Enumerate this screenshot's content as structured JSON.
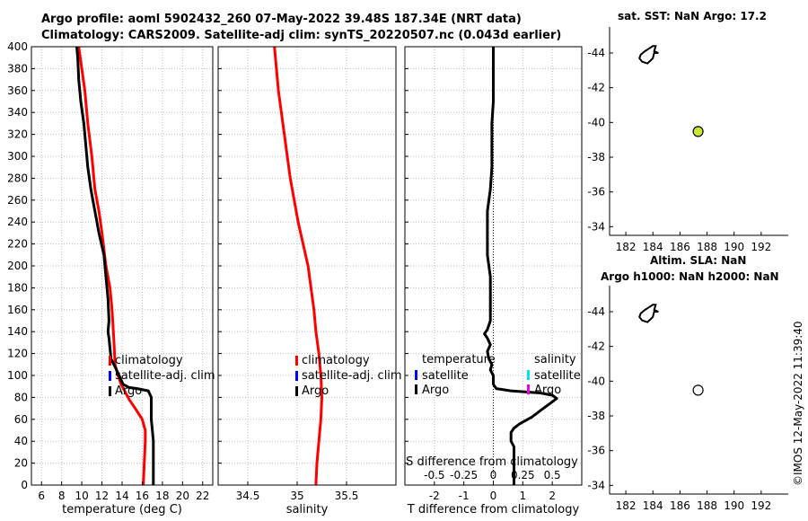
{
  "title": {
    "line1": "Argo profile: aoml 5902432_260 07-May-2022 39.48S 187.34E (NRT data)",
    "line2": "Climatology: CARS2009. Satellite-adj clim: synTS_20220507.nc (0.043d earlier)"
  },
  "timestamp": "©IMOS 12-May-2022 11:39:40",
  "colors": {
    "climatology": "#ff0000",
    "satellite": "#0000ff",
    "argo": "#000000",
    "sat_salinity": "#00e5e5",
    "argo_salinity": "#e800e8",
    "sst_marker": "#c8e632"
  },
  "chart_data": [
    {
      "id": "temperature",
      "type": "line",
      "xlabel": "temperature (deg C)",
      "ylabel": "",
      "xlim": [
        5,
        23
      ],
      "ylim": [
        400,
        0
      ],
      "xticks": [
        6,
        8,
        10,
        12,
        14,
        16,
        18,
        20,
        22
      ],
      "yticks": [
        0,
        20,
        40,
        60,
        80,
        100,
        120,
        140,
        160,
        180,
        200,
        220,
        240,
        260,
        280,
        300,
        320,
        340,
        360,
        380,
        400
      ],
      "grid": true,
      "legend": {
        "position": "lower-right",
        "entries": [
          "climatology",
          "satellite-adj. clim",
          "Argo"
        ]
      },
      "series": [
        {
          "name": "climatology",
          "color": "#ff0000",
          "points": [
            [
              16.1,
              0
            ],
            [
              16.2,
              20
            ],
            [
              16.3,
              40
            ],
            [
              16.3,
              50
            ],
            [
              16.0,
              60
            ],
            [
              15.3,
              70
            ],
            [
              14.7,
              78
            ],
            [
              14.3,
              85
            ],
            [
              13.9,
              92
            ],
            [
              13.6,
              100
            ],
            [
              13.3,
              110
            ],
            [
              13.2,
              130
            ],
            [
              13.0,
              160
            ],
            [
              12.8,
              180
            ],
            [
              12.4,
              200
            ],
            [
              12.0,
              230
            ],
            [
              11.7,
              250
            ],
            [
              11.3,
              270
            ],
            [
              11.0,
              300
            ],
            [
              10.6,
              330
            ],
            [
              10.3,
              360
            ],
            [
              10.0,
              380
            ],
            [
              9.7,
              400
            ]
          ]
        },
        {
          "name": "Argo",
          "color": "#000000",
          "points": [
            [
              17.1,
              0
            ],
            [
              17.1,
              40
            ],
            [
              17.0,
              50
            ],
            [
              16.9,
              60
            ],
            [
              16.9,
              80
            ],
            [
              16.6,
              86
            ],
            [
              15.5,
              88
            ],
            [
              14.7,
              89
            ],
            [
              14.1,
              92
            ],
            [
              13.7,
              100
            ],
            [
              13.3,
              108
            ],
            [
              12.9,
              115
            ],
            [
              12.8,
              125
            ],
            [
              12.7,
              134
            ],
            [
              12.6,
              140
            ],
            [
              12.7,
              150
            ],
            [
              12.6,
              170
            ],
            [
              12.4,
              190
            ],
            [
              12.2,
              210
            ],
            [
              11.7,
              230
            ],
            [
              11.3,
              250
            ],
            [
              10.9,
              270
            ],
            [
              10.6,
              290
            ],
            [
              10.4,
              310
            ],
            [
              10.2,
              330
            ],
            [
              9.9,
              350
            ],
            [
              9.7,
              370
            ],
            [
              9.6,
              390
            ],
            [
              9.5,
              400
            ]
          ]
        }
      ]
    },
    {
      "id": "salinity",
      "type": "line",
      "xlabel": "salinity",
      "ylabel": "",
      "xlim": [
        34.2,
        36.0
      ],
      "ylim": [
        400,
        0
      ],
      "xticks": [
        34.5,
        35,
        35.5
      ],
      "yticks": [
        0,
        20,
        40,
        60,
        80,
        100,
        120,
        140,
        160,
        180,
        200,
        220,
        240,
        260,
        280,
        300,
        320,
        340,
        360,
        380,
        400
      ],
      "grid": true,
      "legend": {
        "position": "lower-right",
        "entries": [
          "climatology",
          "satellite-adj. clim",
          "Argo"
        ]
      },
      "series": [
        {
          "name": "climatology",
          "color": "#ff0000",
          "points": [
            [
              35.19,
              0
            ],
            [
              35.2,
              20
            ],
            [
              35.22,
              40
            ],
            [
              35.24,
              60
            ],
            [
              35.25,
              80
            ],
            [
              35.24,
              100
            ],
            [
              35.22,
              120
            ],
            [
              35.19,
              140
            ],
            [
              35.17,
              160
            ],
            [
              35.14,
              180
            ],
            [
              35.11,
              200
            ],
            [
              35.06,
              220
            ],
            [
              35.01,
              240
            ],
            [
              34.97,
              260
            ],
            [
              34.93,
              280
            ],
            [
              34.9,
              300
            ],
            [
              34.87,
              320
            ],
            [
              34.84,
              340
            ],
            [
              34.81,
              360
            ],
            [
              34.79,
              380
            ],
            [
              34.77,
              400
            ]
          ]
        }
      ]
    },
    {
      "id": "difference",
      "type": "line",
      "xlabel": "T difference from climatology",
      "xlabel_top": "S difference from climatology",
      "xlim": [
        -3,
        3
      ],
      "ylim": [
        400,
        0
      ],
      "xticks": [
        -2,
        -1,
        0,
        1,
        2
      ],
      "top_xtick_labels": [
        "-0.5",
        "-0.25",
        "0",
        "0.25",
        "0.5"
      ],
      "yticks": [
        0,
        20,
        40,
        60,
        80,
        100,
        120,
        140,
        160,
        180,
        200,
        220,
        240,
        260,
        280,
        300,
        320,
        340,
        360,
        380,
        400
      ],
      "grid": true,
      "legend": {
        "position": "lower-center",
        "temperature_header": "temperature",
        "salinity_header": "salinity",
        "temperature_entries": [
          "satellite",
          "Argo"
        ],
        "salinity_entries": [
          "satellite",
          "Argo"
        ]
      },
      "series": [
        {
          "name": "Argo T difference",
          "color": "#000000",
          "points": [
            [
              0.7,
              0
            ],
            [
              0.7,
              20
            ],
            [
              0.7,
              35
            ],
            [
              0.6,
              40
            ],
            [
              0.6,
              48
            ],
            [
              0.7,
              52
            ],
            [
              0.9,
              56
            ],
            [
              1.3,
              62
            ],
            [
              1.7,
              70
            ],
            [
              2.0,
              76
            ],
            [
              2.15,
              79
            ],
            [
              2.0,
              82
            ],
            [
              1.6,
              84
            ],
            [
              0.6,
              86
            ],
            [
              0.1,
              88
            ],
            [
              0.0,
              92
            ],
            [
              0.0,
              100
            ],
            [
              -0.1,
              105
            ],
            [
              -0.05,
              110
            ],
            [
              -0.15,
              115
            ],
            [
              -0.2,
              122
            ],
            [
              -0.1,
              128
            ],
            [
              -0.2,
              134
            ],
            [
              -0.3,
              138
            ],
            [
              -0.2,
              142
            ],
            [
              -0.1,
              150
            ],
            [
              -0.1,
              170
            ],
            [
              -0.1,
              190
            ],
            [
              -0.2,
              210
            ],
            [
              -0.2,
              230
            ],
            [
              -0.2,
              250
            ],
            [
              -0.1,
              270
            ],
            [
              -0.05,
              290
            ],
            [
              -0.05,
              310
            ],
            [
              -0.05,
              330
            ],
            [
              0.0,
              350
            ],
            [
              0.0,
              370
            ],
            [
              0.0,
              390
            ],
            [
              0.0,
              400
            ]
          ]
        }
      ]
    },
    {
      "id": "map-sst",
      "type": "scatter",
      "title": "sat. SST: NaN Argo: 17.2",
      "xlim": [
        180.8,
        194
      ],
      "ylim": [
        -45.5,
        -33.5
      ],
      "xticks": [
        182,
        184,
        186,
        188,
        190,
        192
      ],
      "yticks": [
        -34,
        -36,
        -38,
        -40,
        -42,
        -44
      ],
      "points": [
        {
          "x": 187.34,
          "y": -39.48,
          "label": "Argo",
          "fill": "#c8e632"
        }
      ],
      "coastline": [
        [
          183.0,
          -43.7
        ],
        [
          183.2,
          -43.5
        ],
        [
          183.6,
          -43.4
        ],
        [
          184.0,
          -43.7
        ],
        [
          184.1,
          -44.0
        ],
        [
          184.4,
          -44.0
        ],
        [
          184.1,
          -44.1
        ],
        [
          184.2,
          -44.4
        ],
        [
          184.0,
          -44.4
        ],
        [
          183.8,
          -44.3
        ],
        [
          183.4,
          -44.1
        ],
        [
          183.1,
          -43.9
        ],
        [
          183.0,
          -43.7
        ]
      ]
    },
    {
      "id": "map-sla",
      "type": "scatter",
      "title_line1": "Altim. SLA: NaN",
      "title_line2": "Argo h1000: NaN h2000: NaN",
      "xlim": [
        180.8,
        194
      ],
      "ylim": [
        -45.5,
        -33.5
      ],
      "xticks": [
        182,
        184,
        186,
        188,
        190,
        192
      ],
      "yticks": [
        -34,
        -36,
        -38,
        -40,
        -42,
        -44
      ],
      "points": [
        {
          "x": 187.34,
          "y": -39.48,
          "label": "Argo",
          "fill": "#ffffff"
        }
      ],
      "coastline": [
        [
          183.0,
          -43.7
        ],
        [
          183.2,
          -43.5
        ],
        [
          183.6,
          -43.4
        ],
        [
          184.0,
          -43.7
        ],
        [
          184.1,
          -44.0
        ],
        [
          184.4,
          -44.0
        ],
        [
          184.1,
          -44.1
        ],
        [
          184.2,
          -44.4
        ],
        [
          184.0,
          -44.4
        ],
        [
          183.8,
          -44.3
        ],
        [
          183.4,
          -44.1
        ],
        [
          183.1,
          -43.9
        ],
        [
          183.0,
          -43.7
        ]
      ]
    }
  ]
}
